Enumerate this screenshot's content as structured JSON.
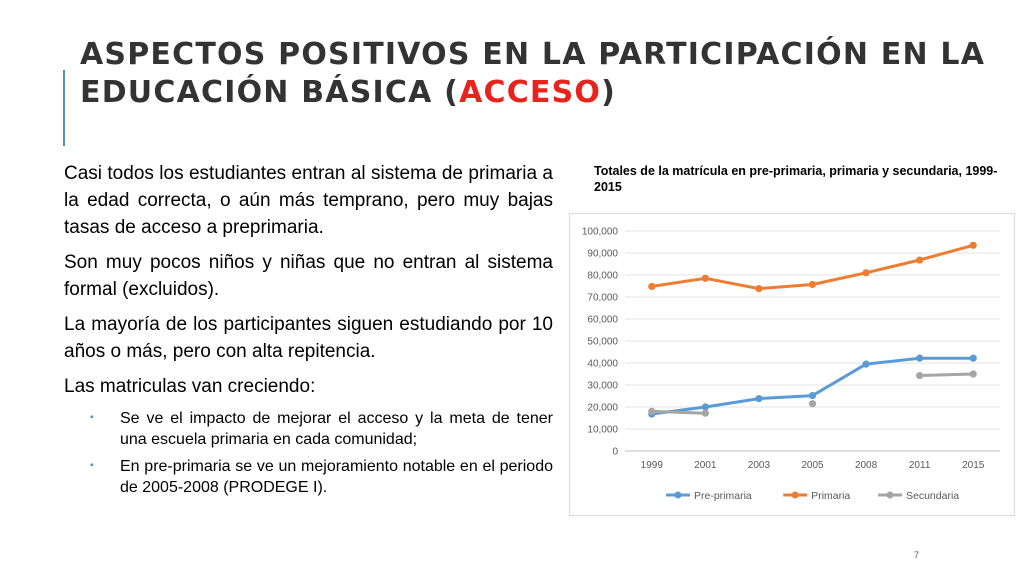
{
  "slide": {
    "title_part1": "Aspectos positivos en la participación en la educación básica (",
    "title_highlight": "acceso",
    "title_part2": ")",
    "page_number": "7"
  },
  "colors": {
    "accent": "#4f93b8",
    "highlight": "#e8231d"
  },
  "body": {
    "paragraphs": [
      "Casi todos los estudiantes entran al sistema de primaria a la edad correcta, o aún más temprano, pero muy bajas tasas de acceso a preprimaria.",
      "Son muy pocos niños y niñas que no entran al sistema formal (excluidos).",
      "La mayoría de los participantes siguen estudiando por 10 años o más, pero con alta repitencia.",
      "Las matriculas van creciendo:"
    ],
    "bullets": [
      "Se ve el impacto de mejorar el acceso y la meta de tener una escuela primaria en cada comunidad;",
      "En pre-primaria se ve un mejoramiento notable en el periodo de 2005-2008 (PRODEGE I)."
    ]
  },
  "chart_data": {
    "type": "line",
    "title": "Totales de la matrícula en pre-primaria, primaria y secundaria, 1999-2015",
    "xlabel": "",
    "ylabel": "",
    "categories": [
      "1999",
      "2001",
      "2003",
      "2005",
      "2008",
      "2011",
      "2015"
    ],
    "ylim": [
      0,
      100000
    ],
    "y_ticks": [
      0,
      10000,
      20000,
      30000,
      40000,
      50000,
      60000,
      70000,
      80000,
      90000,
      100000
    ],
    "y_tick_labels": [
      "0",
      "10,000",
      "20,000",
      "30,000",
      "40,000",
      "50,000",
      "60,000",
      "70,000",
      "80,000",
      "90,000",
      "100,000"
    ],
    "grid": true,
    "legend_position": "bottom",
    "series": [
      {
        "name": "Pre-primaria",
        "color": "#5b9bd5",
        "values": [
          16800,
          20000,
          23800,
          25200,
          39500,
          42200,
          42200
        ]
      },
      {
        "name": "Primaria",
        "color": "#ed7d31",
        "values": [
          74800,
          78500,
          73800,
          75700,
          81000,
          86800,
          93500
        ]
      },
      {
        "name": "Secundaria",
        "color": "#a5a5a5",
        "values": [
          18000,
          17200,
          null,
          21500,
          null,
          34300,
          35000
        ]
      }
    ]
  }
}
